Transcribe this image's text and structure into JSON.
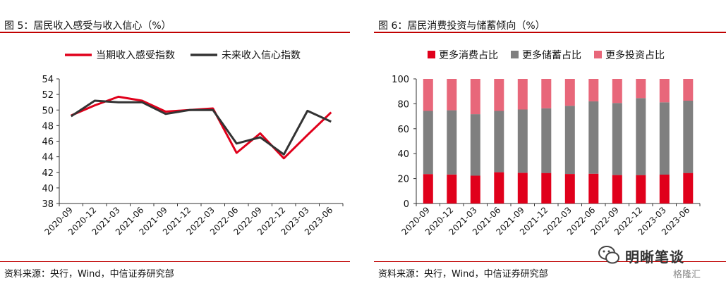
{
  "left": {
    "title": "图 5：居民收入感受与收入信心（%）",
    "source": "资料来源：央行，Wind，中信证券研究部"
  },
  "right": {
    "title": "图 6：居民消费投资与储蓄倾向（%）",
    "source": "资料来源：央行，Wind，中信证券研究部"
  },
  "watermark": {
    "text": "明晰笔谈",
    "badge": "格隆汇"
  },
  "colors": {
    "accent": "#c00000",
    "red": "#e0001b",
    "dark": "#333333",
    "gray": "#7f7f7f",
    "pink": "#e8677a"
  },
  "chart_data": [
    {
      "type": "line",
      "title": "图 5：居民收入感受与收入信心（%）",
      "categories": [
        "2020-09",
        "2020-12",
        "2021-03",
        "2021-06",
        "2021-09",
        "2021-12",
        "2022-03",
        "2022-06",
        "2022-09",
        "2022-12",
        "2023-03",
        "2023-06"
      ],
      "series": [
        {
          "name": "当期收入感受指数",
          "color": "#e0001b",
          "values": [
            49.3,
            50.6,
            51.7,
            51.2,
            49.8,
            50.0,
            50.2,
            44.5,
            47.0,
            43.8,
            46.8,
            49.7
          ]
        },
        {
          "name": "未来收入信心指数",
          "color": "#333333",
          "values": [
            49.2,
            51.2,
            51.0,
            51.0,
            49.5,
            50.0,
            50.0,
            45.7,
            46.5,
            44.3,
            49.9,
            48.5
          ]
        }
      ],
      "ylim": [
        38,
        54
      ],
      "yticks": [
        38,
        40,
        42,
        44,
        46,
        48,
        50,
        52,
        54
      ],
      "legend": "top",
      "grid": false
    },
    {
      "type": "bar",
      "stacked": true,
      "title": "图 6：居民消费投资与储蓄倾向（%）",
      "categories": [
        "2020-09",
        "2020-12",
        "2021-03",
        "2021-06",
        "2021-09",
        "2021-12",
        "2022-03",
        "2022-06",
        "2022-09",
        "2022-12",
        "2023-03",
        "2023-06"
      ],
      "series": [
        {
          "name": "更多消费占比",
          "color": "#e0001b",
          "values": [
            23.6,
            23.3,
            22.3,
            25.1,
            24.6,
            24.5,
            23.7,
            23.9,
            22.8,
            22.8,
            23.2,
            24.5
          ]
        },
        {
          "name": "更多储蓄占比",
          "color": "#7f7f7f",
          "values": [
            50.7,
            51.5,
            49.4,
            49.2,
            50.8,
            51.9,
            54.7,
            58.1,
            57.8,
            61.8,
            58.0,
            58.0
          ]
        },
        {
          "name": "更多投资占比",
          "color": "#e8677a",
          "values": [
            25.7,
            25.2,
            28.3,
            25.7,
            24.6,
            23.6,
            21.6,
            18.0,
            19.4,
            15.4,
            18.8,
            17.5
          ]
        }
      ],
      "ylim": [
        0,
        100
      ],
      "yticks": [
        0,
        20,
        40,
        60,
        80,
        100
      ],
      "legend": "top",
      "grid": false
    }
  ]
}
